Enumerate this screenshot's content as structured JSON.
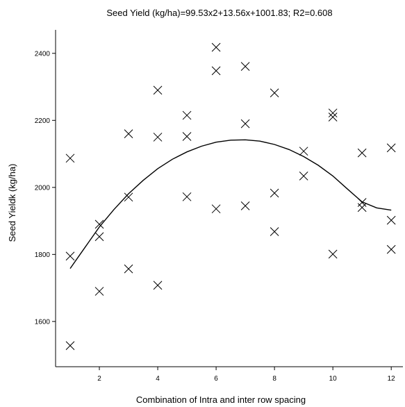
{
  "chart_data": {
    "type": "scatter",
    "title": "Seed Yield (kg/ha)=99.53x2+13.56x+1001.83; R2=0.608",
    "xlabel": "Combination of Intra  and inter row spacing",
    "ylabel": "Seed Yieldk (kg/ha)",
    "xlim": [
      0.5,
      12.4
    ],
    "ylim": [
      1465,
      2470
    ],
    "xticks": [
      2,
      4,
      6,
      8,
      10,
      12
    ],
    "yticks": [
      1600,
      1800,
      2000,
      2200,
      2400
    ],
    "grid": false,
    "marker": "x",
    "series": [
      {
        "points": [
          [
            1,
            2087
          ],
          [
            1,
            1795
          ],
          [
            1,
            1528
          ],
          [
            2,
            1890
          ],
          [
            2,
            1853
          ],
          [
            2,
            1690
          ],
          [
            3,
            2160
          ],
          [
            3,
            1971
          ],
          [
            3,
            1757
          ],
          [
            4,
            2290
          ],
          [
            4,
            2150
          ],
          [
            4,
            1708
          ],
          [
            5,
            2215
          ],
          [
            5,
            2152
          ],
          [
            5,
            1972
          ],
          [
            6,
            2418
          ],
          [
            6,
            2348
          ],
          [
            6,
            1936
          ],
          [
            7,
            2361
          ],
          [
            7,
            2190
          ],
          [
            7,
            1945
          ],
          [
            8,
            2282
          ],
          [
            8,
            1983
          ],
          [
            8,
            1868
          ],
          [
            9,
            2108
          ],
          [
            9,
            2034
          ],
          [
            10,
            2222
          ],
          [
            10,
            2210
          ],
          [
            10,
            1801
          ],
          [
            11,
            2103
          ],
          [
            11,
            1955
          ],
          [
            11,
            1940
          ],
          [
            12,
            2118
          ],
          [
            12,
            1902
          ],
          [
            12,
            1815
          ]
        ]
      }
    ],
    "trend": {
      "x": [
        1,
        1.5,
        2,
        2.5,
        3,
        3.5,
        4,
        4.5,
        5,
        5.5,
        6,
        6.5,
        7,
        7.5,
        8,
        8.5,
        9,
        9.5,
        10,
        10.5,
        11,
        11.5,
        12
      ],
      "y": [
        1758,
        1820,
        1882,
        1934,
        1981,
        2021,
        2056,
        2084,
        2106,
        2123,
        2135,
        2141,
        2142,
        2138,
        2128,
        2113,
        2092,
        2066,
        2034,
        1995,
        1957,
        1939,
        1932
      ]
    },
    "colors": {
      "marker": "#000000",
      "line": "#000000",
      "axis": "#000000"
    }
  }
}
